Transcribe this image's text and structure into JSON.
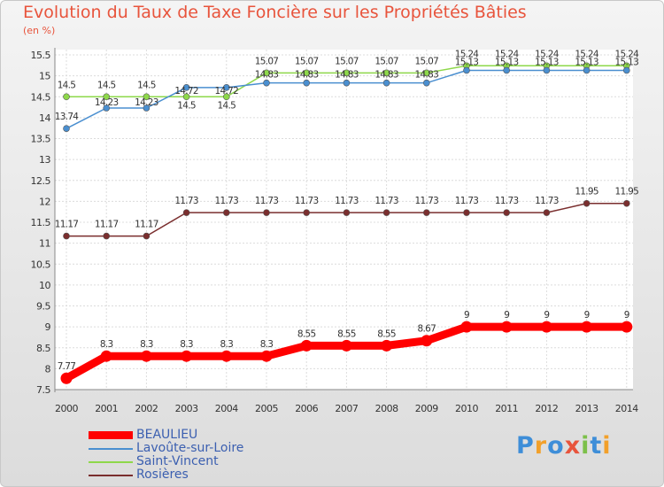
{
  "title": "Evolution du Taux de Taxe Foncière sur les Propriétés Bâties",
  "unit_label": "(en %)",
  "logo_text": "Proxiti",
  "chart_data": {
    "type": "line",
    "title": "Evolution du Taux de Taxe Foncière sur les Propriétés Bâties",
    "ylabel": "(en %)",
    "ylim": [
      7.5,
      15.5
    ],
    "yticks": [
      "7.5",
      "8",
      "8.5",
      "9",
      "9.5",
      "10",
      "10.5",
      "11",
      "11.5",
      "12",
      "12.5",
      "13",
      "13.5",
      "14",
      "14.5",
      "15",
      "15.5"
    ],
    "categories": [
      "2000",
      "2001",
      "2002",
      "2003",
      "2004",
      "2005",
      "2006",
      "2007",
      "2008",
      "2009",
      "2010",
      "2011",
      "2012",
      "2013",
      "2014"
    ],
    "series": [
      {
        "name": "BEAULIEU",
        "color": "#ff0000",
        "values": [
          7.77,
          8.3,
          8.3,
          8.3,
          8.3,
          8.3,
          8.55,
          8.55,
          8.55,
          8.67,
          9,
          9,
          9,
          9,
          9
        ],
        "labels": [
          "7.77",
          "8.3",
          "8.3",
          "8.3",
          "8.3",
          "8.3",
          "8.55",
          "8.55",
          "8.55",
          "8.67",
          "9",
          "9",
          "9",
          "9",
          "9"
        ]
      },
      {
        "name": "Lavoûte-sur-Loire",
        "color": "#4a8fd0",
        "values": [
          13.74,
          14.23,
          14.23,
          14.72,
          14.72,
          14.83,
          14.83,
          14.83,
          14.83,
          14.83,
          15.13,
          15.13,
          15.13,
          15.13,
          15.13
        ],
        "labels": [
          "13.74",
          "14.23",
          "14.23",
          "14.72",
          "14.72",
          "14.83",
          "14.83",
          "14.83",
          "14.83",
          "14.83",
          "15.13",
          "15.13",
          "15.13",
          "15.13",
          "15.13"
        ]
      },
      {
        "name": "Saint-Vincent",
        "color": "#8ed84a",
        "values": [
          14.5,
          14.5,
          14.5,
          14.5,
          14.5,
          15.07,
          15.07,
          15.07,
          15.07,
          15.07,
          15.24,
          15.24,
          15.24,
          15.24,
          15.24
        ],
        "labels": [
          "14.5",
          "14.5",
          "14.5",
          "14.5",
          "14.5",
          "15.07",
          "15.07",
          "15.07",
          "15.07",
          "15.07",
          "15.24",
          "15.24",
          "15.24",
          "15.24",
          "15.24"
        ]
      },
      {
        "name": "Rosières",
        "color": "#7a2e2e",
        "values": [
          11.17,
          11.17,
          11.17,
          11.73,
          11.73,
          11.73,
          11.73,
          11.73,
          11.73,
          11.73,
          11.73,
          11.73,
          11.73,
          11.95,
          11.95
        ],
        "labels": [
          "11.17",
          "11.17",
          "11.17",
          "11.73",
          "11.73",
          "11.73",
          "11.73",
          "11.73",
          "11.73",
          "11.73",
          "11.73",
          "11.73",
          "11.73",
          "11.95",
          "11.95"
        ]
      }
    ],
    "legend": [
      "BEAULIEU",
      "Lavoûte-sur-Loire",
      "Saint-Vincent",
      "Rosières"
    ]
  }
}
